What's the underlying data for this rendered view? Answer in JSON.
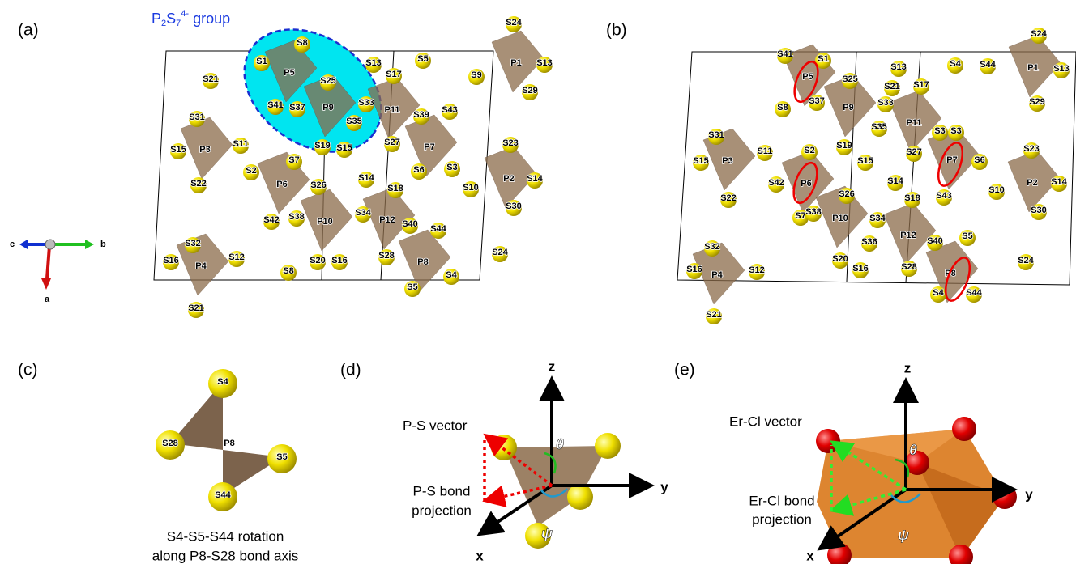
{
  "panels": {
    "a": {
      "label": "(a)",
      "group_label": [
        "P",
        "2",
        "S",
        "7",
        "4-",
        " group"
      ],
      "atoms": [
        "S8",
        "S1",
        "P5",
        "S25",
        "S41",
        "S37",
        "P9",
        "S33",
        "S35",
        "S19",
        "S15",
        "S13",
        "S5",
        "S17",
        "P11",
        "S39",
        "S43",
        "P7",
        "S27",
        "S6",
        "S3",
        "S24",
        "P1",
        "S13",
        "S9",
        "S29",
        "S21",
        "S31",
        "S11",
        "S15",
        "P3",
        "S22",
        "S7",
        "S2",
        "P6",
        "S26",
        "S14",
        "S18",
        "S23",
        "S10",
        "P2",
        "S14",
        "S30",
        "S42",
        "S38",
        "P10",
        "S34",
        "P12",
        "S40",
        "S44",
        "S32",
        "S16",
        "S12",
        "P4",
        "S21",
        "S8",
        "S20",
        "S16",
        "S28",
        "P8",
        "S24",
        "S5",
        "S4"
      ],
      "axes": [
        "c",
        "b",
        "a"
      ]
    },
    "b": {
      "label": "(b)",
      "atoms": [
        "S41",
        "S1",
        "P5",
        "S25",
        "S8",
        "S37",
        "P9",
        "S33",
        "S13",
        "S21",
        "S17",
        "S4",
        "S44",
        "S24",
        "P1",
        "S13",
        "S29",
        "S35",
        "P11",
        "S3",
        "S3",
        "S31",
        "S11",
        "S15",
        "P3",
        "S22",
        "S19",
        "S27",
        "S2",
        "P7",
        "S6",
        "S23",
        "S15",
        "S42",
        "P6",
        "S26",
        "S14",
        "S43",
        "S10",
        "P2",
        "S14",
        "S18",
        "S30",
        "S7",
        "S38",
        "P10",
        "S34",
        "S36",
        "P12",
        "S40",
        "S5",
        "S32",
        "S16",
        "P4",
        "S12",
        "S20",
        "S16",
        "S28",
        "P8",
        "S24",
        "S4",
        "S44",
        "S21"
      ]
    },
    "c": {
      "label": "(c)",
      "atoms": [
        "S4",
        "S28",
        "P8",
        "S5",
        "S44"
      ],
      "caption": [
        "S4-S5-S44 rotation",
        "along P8-S28 bond axis"
      ]
    },
    "d": {
      "label": "(d)",
      "axes": [
        "z",
        "y",
        "x"
      ],
      "angles": [
        "θ",
        "ψ"
      ],
      "vector_label": "P-S vector",
      "projection_label": [
        "P-S bond",
        "projection"
      ]
    },
    "e": {
      "label": "(e)",
      "axes": [
        "z",
        "y",
        "x"
      ],
      "angles": [
        "θ",
        "ψ"
      ],
      "vector_label": "Er-Cl vector",
      "projection_label": [
        "Er-Cl bond",
        "projection"
      ]
    }
  }
}
